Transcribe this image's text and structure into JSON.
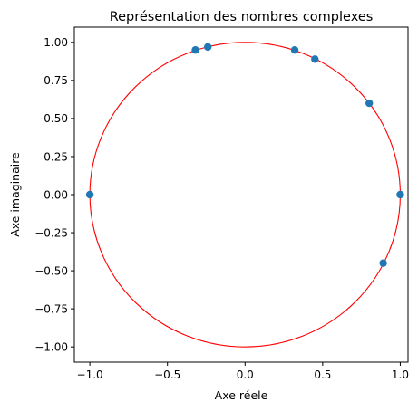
{
  "chart_data": {
    "type": "scatter",
    "title": "Représentation des nombres complexes",
    "xlabel": "Axe réele",
    "ylabel": "Axe imaginaire",
    "xlim": [
      -1.1,
      1.05
    ],
    "ylim": [
      -1.1,
      1.1
    ],
    "xticks": [
      -1.0,
      -0.5,
      0.0,
      0.5,
      1.0
    ],
    "xtick_labels": [
      "−1.0",
      "−0.5",
      "0.0",
      "0.5",
      "1.0"
    ],
    "yticks": [
      -1.0,
      -0.75,
      -0.5,
      -0.25,
      0.0,
      0.25,
      0.5,
      0.75,
      1.0
    ],
    "ytick_labels": [
      "−1.00",
      "−0.75",
      "−0.50",
      "−0.25",
      "0.00",
      "0.25",
      "0.50",
      "0.75",
      "1.00"
    ],
    "grid": false,
    "points": {
      "x": [
        -1.0,
        -0.32,
        -0.24,
        0.32,
        0.45,
        0.8,
        1.0,
        0.89
      ],
      "y": [
        0.0,
        0.95,
        0.97,
        0.95,
        0.89,
        0.6,
        0.0,
        -0.45
      ],
      "color": "#1f77b4"
    },
    "circle": {
      "center": [
        0,
        0
      ],
      "radius": 1,
      "color": "#ff0000"
    }
  }
}
